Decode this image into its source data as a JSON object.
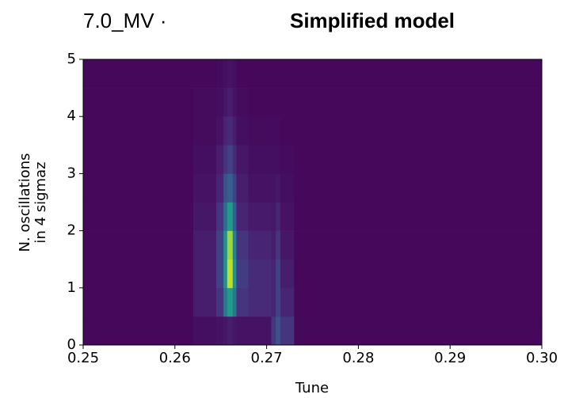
{
  "chart_data": {
    "type": "heatmap",
    "annotation": "7.0_MV ·",
    "title": "Simplified model",
    "xlabel": "Tune",
    "ylabel": [
      "N. oscillations",
      "in 4 sigmaz"
    ],
    "colormap": "viridis",
    "xlim": [
      0.25,
      0.3
    ],
    "ylim": [
      0,
      5
    ],
    "xticks": [
      0.25,
      0.26,
      0.27,
      0.28,
      0.29,
      {
        "value": 0.3,
        "label": "0.30"
      }
    ],
    "yticks": [
      0,
      1,
      2,
      3,
      4,
      5
    ],
    "xedges": [
      0.25,
      0.262,
      0.2645,
      0.2653,
      0.2657,
      0.2663,
      0.2667,
      0.268,
      0.2705,
      0.271,
      0.2715,
      0.273,
      0.3
    ],
    "yedges": [
      0,
      0.5,
      1,
      1.5,
      2,
      2.5,
      3,
      3.5,
      4,
      4.5,
      5
    ],
    "z": [
      [
        0.02,
        0.04,
        0.05,
        0.06,
        0.08,
        0.06,
        0.05,
        0.05,
        0.15,
        0.25,
        0.15,
        0.02
      ],
      [
        0.02,
        0.08,
        0.15,
        0.4,
        0.55,
        0.4,
        0.15,
        0.12,
        0.1,
        0.2,
        0.1,
        0.02
      ],
      [
        0.02,
        0.08,
        0.2,
        0.5,
        0.9,
        0.5,
        0.18,
        0.12,
        0.1,
        0.2,
        0.08,
        0.02
      ],
      [
        0.02,
        0.08,
        0.2,
        0.5,
        0.85,
        0.45,
        0.15,
        0.1,
        0.08,
        0.15,
        0.06,
        0.02
      ],
      [
        0.02,
        0.06,
        0.15,
        0.35,
        0.55,
        0.3,
        0.1,
        0.07,
        0.06,
        0.1,
        0.05,
        0.02
      ],
      [
        0.02,
        0.05,
        0.1,
        0.25,
        0.3,
        0.2,
        0.08,
        0.05,
        0.05,
        0.06,
        0.04,
        0.02
      ],
      [
        0.02,
        0.04,
        0.08,
        0.15,
        0.2,
        0.12,
        0.06,
        0.04,
        0.04,
        0.04,
        0.03,
        0.02
      ],
      [
        0.02,
        0.03,
        0.05,
        0.1,
        0.12,
        0.08,
        0.04,
        0.03,
        0.03,
        0.03,
        0.02,
        0.02
      ],
      [
        0.02,
        0.03,
        0.04,
        0.06,
        0.08,
        0.05,
        0.03,
        0.02,
        0.02,
        0.02,
        0.02,
        0.02
      ],
      [
        0.02,
        0.02,
        0.03,
        0.04,
        0.05,
        0.04,
        0.02,
        0.02,
        0.02,
        0.02,
        0.02,
        0.02
      ]
    ]
  }
}
